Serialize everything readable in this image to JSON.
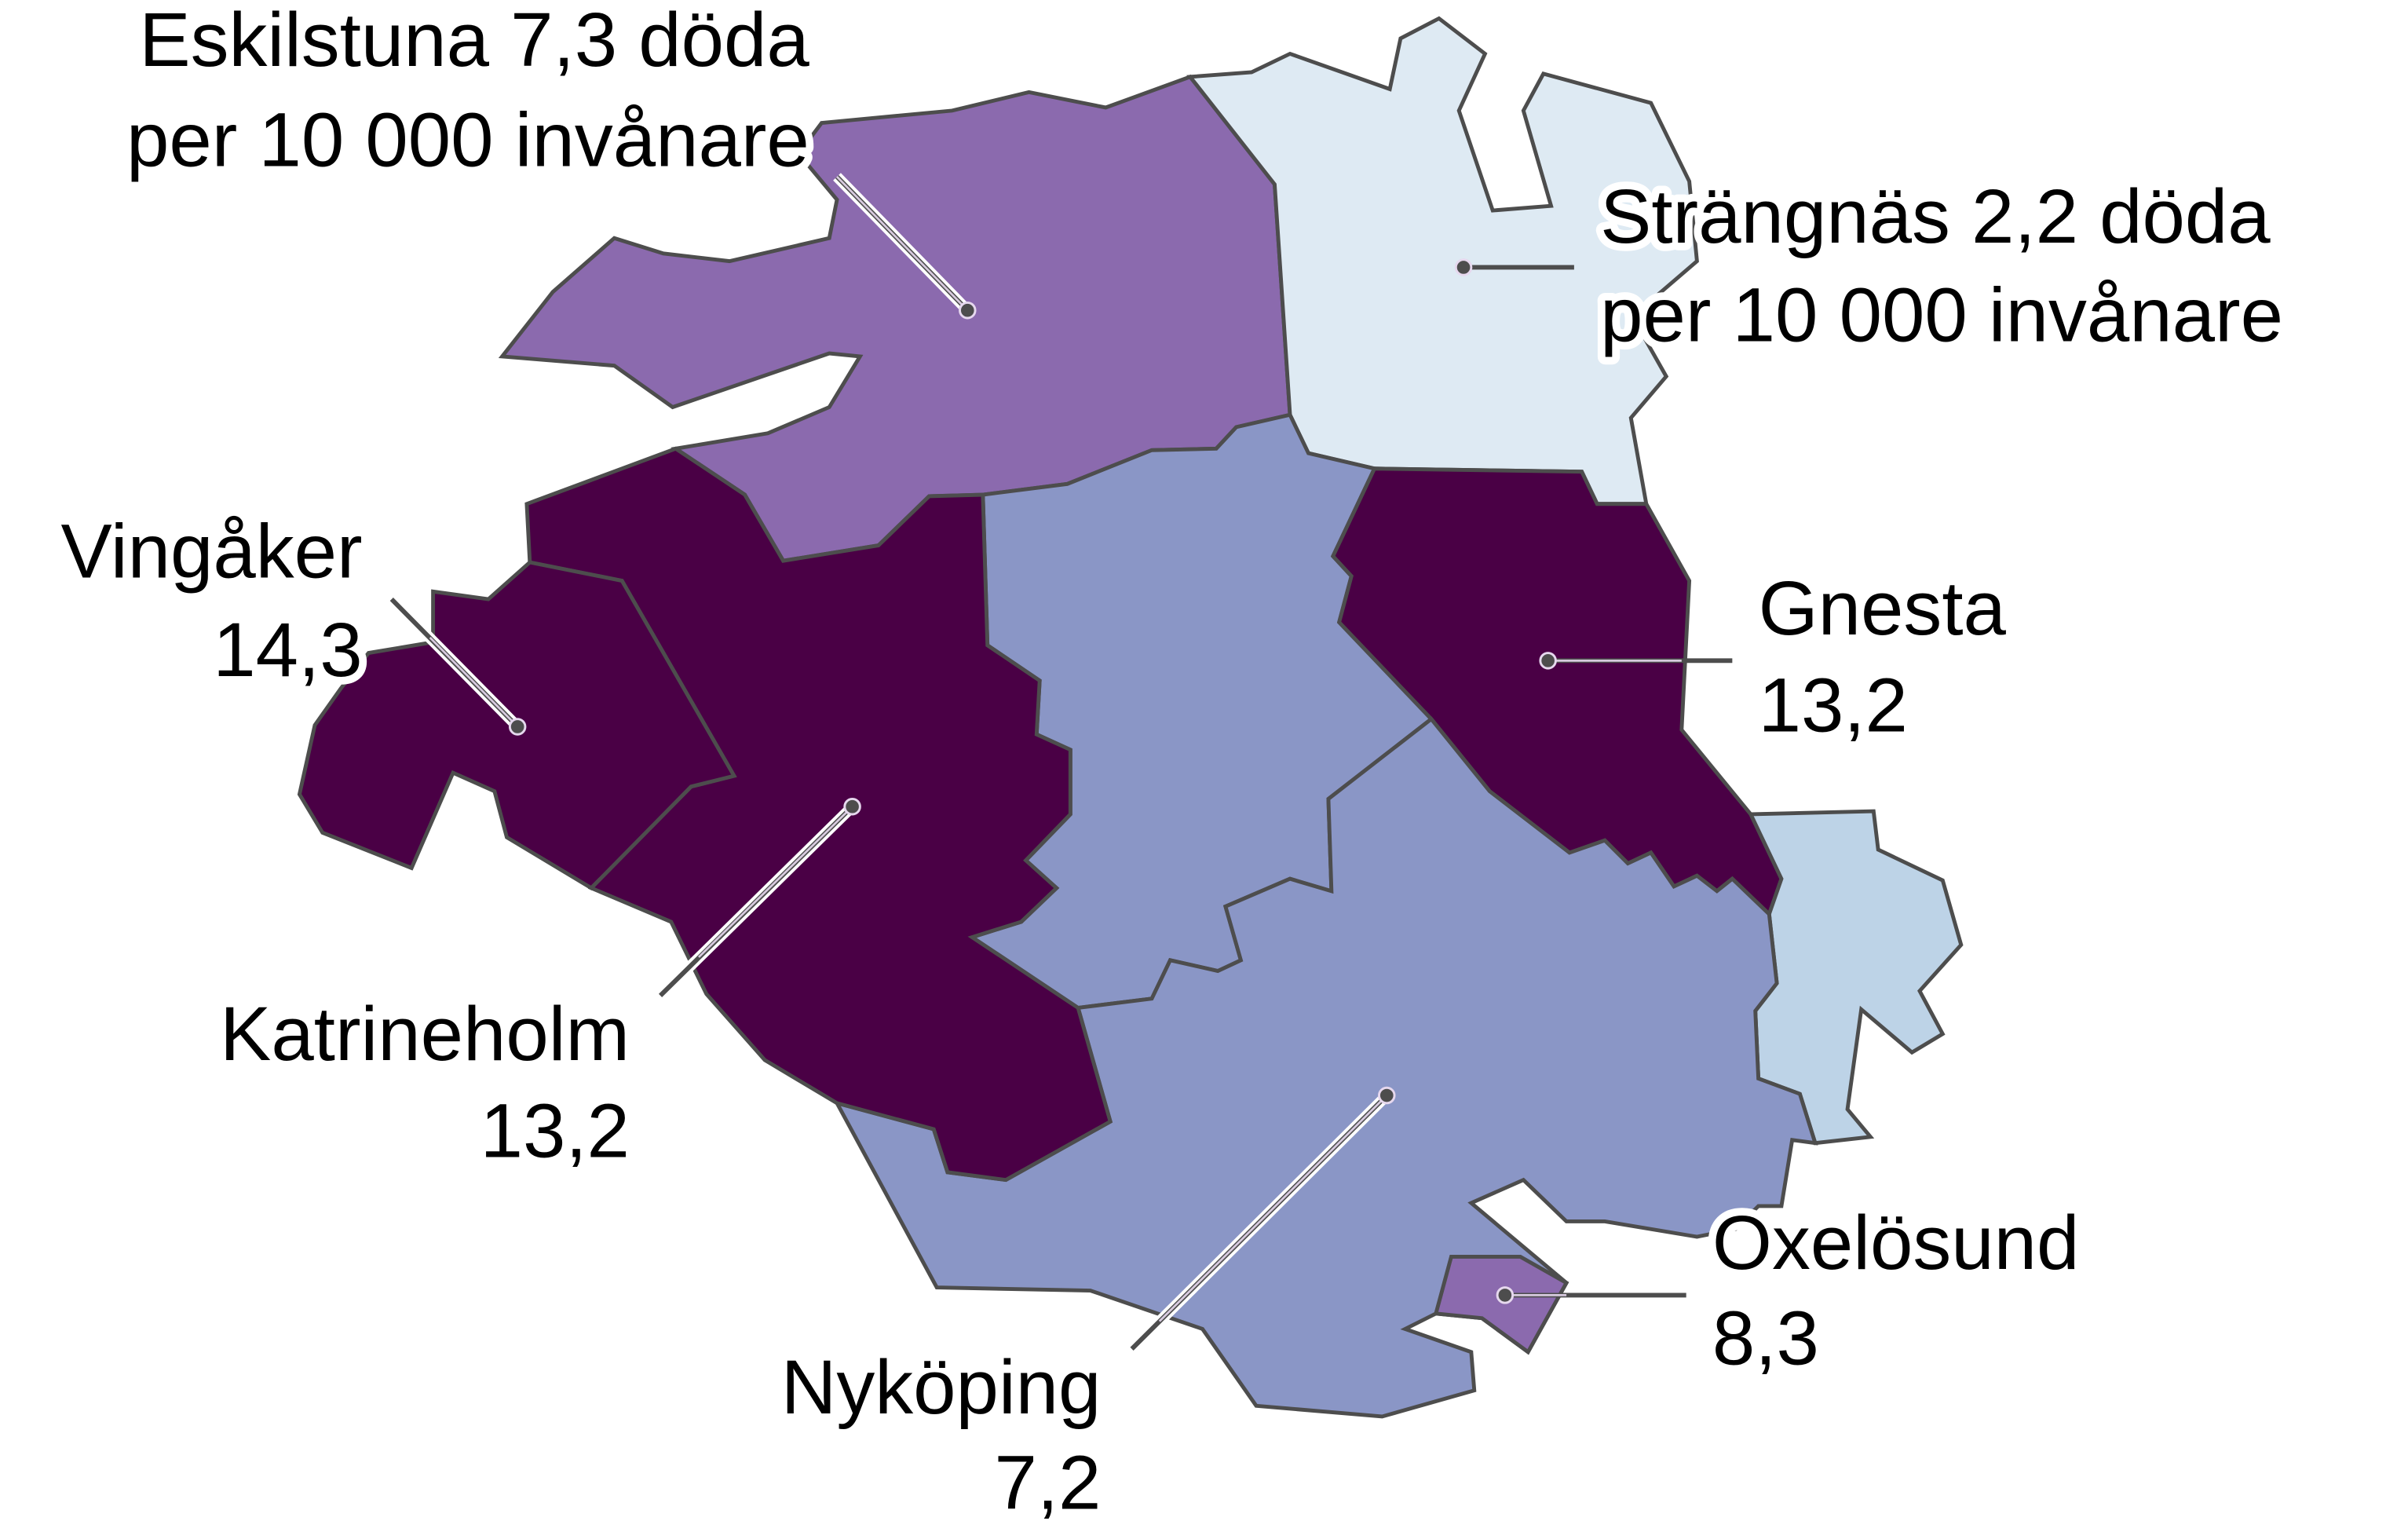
{
  "map": {
    "stroke_color": "#4d4d4d",
    "regions": [
      {
        "id": "eskilstuna",
        "name": "Eskilstuna",
        "value": "7,3",
        "color": "#8b6aae"
      },
      {
        "id": "strangnas",
        "name": "Strängnäs",
        "value": "2,2",
        "color": "#deeaf3"
      },
      {
        "id": "flen",
        "color": "#8a96c6"
      },
      {
        "id": "gnesta",
        "name": "Gnesta",
        "value": "13,2",
        "color": "#4a0045"
      },
      {
        "id": "trosa",
        "color": "#bdd3e7"
      },
      {
        "id": "nykoping",
        "name": "Nyköping",
        "value": "7,2",
        "color": "#8a96c6"
      },
      {
        "id": "oxelosund",
        "name": "Oxelösund",
        "value": "8,3",
        "color": "#8b6aae"
      },
      {
        "id": "katrineholm",
        "name": "Katrineholm",
        "value": "13,2",
        "color": "#4a0045"
      },
      {
        "id": "vingaker",
        "name": "Vingåker",
        "value": "14,3",
        "color": "#4a0045"
      }
    ],
    "labels": {
      "eskilstuna": [
        "Eskilstuna 7,3 döda",
        "per 10 000 invånare"
      ],
      "strangnas": [
        "Strängnäs 2,2 döda",
        "per 10 000 invånare"
      ],
      "vingaker": [
        "Vingåker",
        "14,3"
      ],
      "gnesta": [
        "Gnesta",
        "13,2"
      ],
      "katrineholm": [
        "Katrineholm",
        "13,2"
      ],
      "nykoping": [
        "Nyköping",
        "7,2"
      ],
      "oxelosund": [
        "Oxelösund",
        "8,3"
      ]
    }
  }
}
